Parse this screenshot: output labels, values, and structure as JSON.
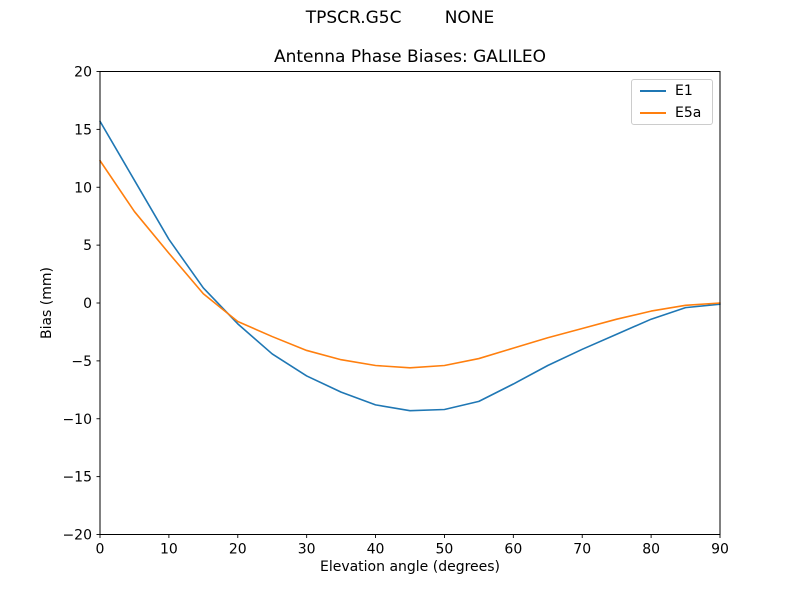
{
  "figure": {
    "suptitle": "TPSCR.G5C        NONE"
  },
  "chart_data": {
    "type": "line",
    "title": "Antenna Phase Biases: GALILEO",
    "xlabel": "Elevation angle (degrees)",
    "ylabel": "Bias (mm)",
    "xlim": [
      0,
      90
    ],
    "ylim": [
      -20,
      20
    ],
    "grid": false,
    "legend_position": "upper right",
    "xticks": [
      0,
      10,
      20,
      30,
      40,
      50,
      60,
      70,
      80,
      90
    ],
    "xticklabels": [
      "0",
      "10",
      "20",
      "30",
      "40",
      "50",
      "60",
      "70",
      "80",
      "90"
    ],
    "yticks": [
      20,
      15,
      10,
      5,
      0,
      -5,
      -10,
      -15,
      -20
    ],
    "yticklabels": [
      "20",
      "15",
      "10",
      "5",
      "0",
      "−5",
      "−10",
      "−15",
      "−20"
    ],
    "x": [
      0,
      5,
      10,
      15,
      20,
      25,
      30,
      35,
      40,
      45,
      50,
      55,
      60,
      65,
      70,
      75,
      80,
      85,
      90
    ],
    "series": [
      {
        "name": "E1",
        "color": "#1f77b4",
        "values": [
          15.7,
          10.6,
          5.5,
          1.3,
          -1.8,
          -4.4,
          -6.3,
          -7.7,
          -8.8,
          -9.3,
          -9.2,
          -8.5,
          -7.0,
          -5.4,
          -4.0,
          -2.7,
          -1.4,
          -0.4,
          -0.1
        ]
      },
      {
        "name": "E5a",
        "color": "#ff7f0e",
        "values": [
          12.3,
          7.9,
          4.3,
          0.8,
          -1.6,
          -2.9,
          -4.1,
          -4.9,
          -5.4,
          -5.6,
          -5.4,
          -4.8,
          -3.9,
          -3.0,
          -2.2,
          -1.4,
          -0.7,
          -0.2,
          0.0
        ]
      }
    ],
    "axis_color": "#000000",
    "background_color": "#ffffff"
  }
}
